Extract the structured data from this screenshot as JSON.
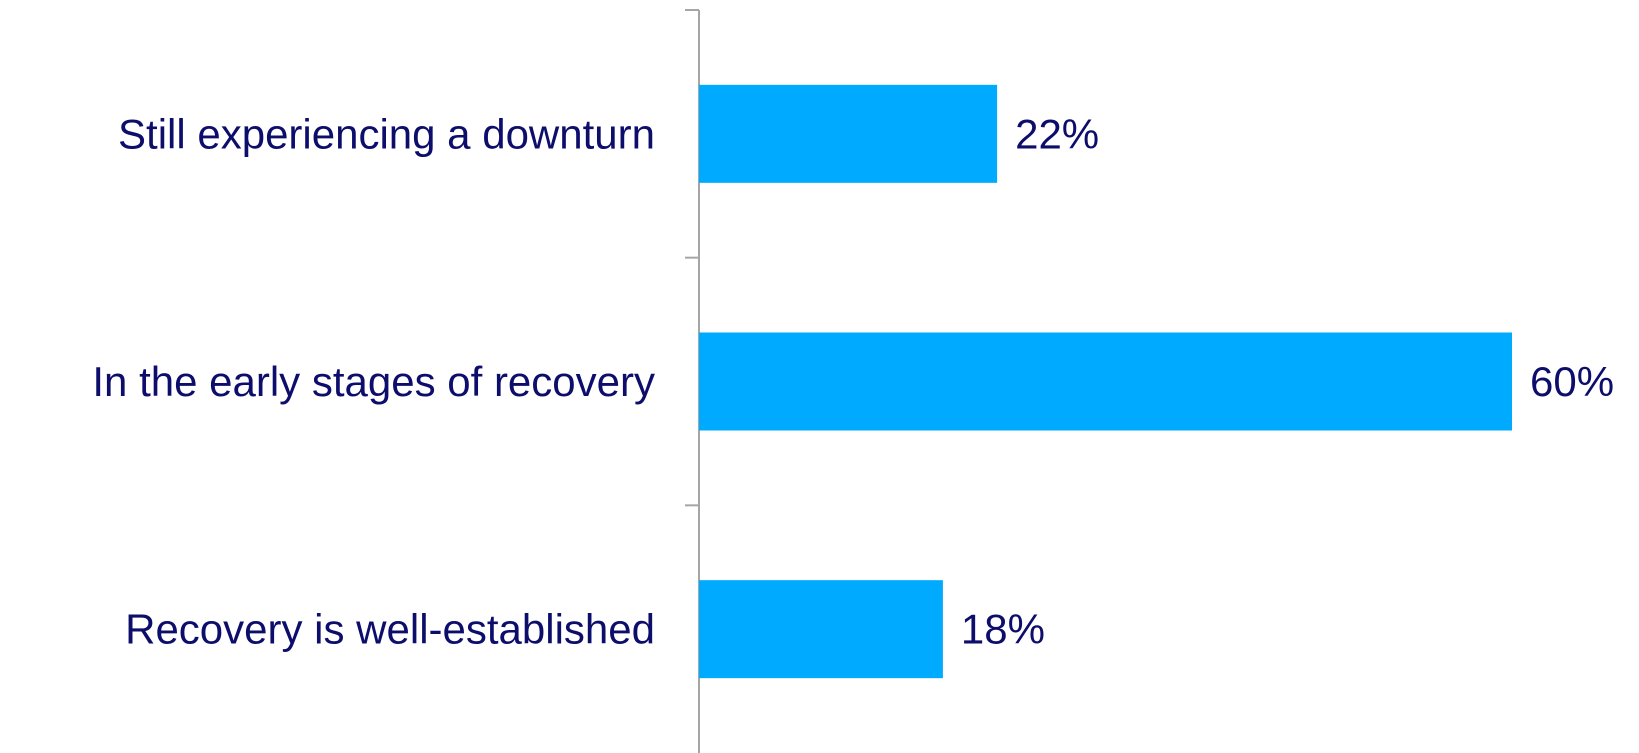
{
  "chart_data": {
    "type": "bar",
    "orientation": "horizontal",
    "categories": [
      "Still experiencing a downturn",
      "In the early stages of recovery",
      "Recovery is well-established"
    ],
    "values": [
      22,
      60,
      18
    ],
    "value_labels": [
      "22%",
      "60%",
      "18%"
    ],
    "unit": "%",
    "xlim": [
      0,
      60
    ],
    "grid": false,
    "legend": "none",
    "bar_color": "#00AAFF",
    "text_color": "#0D0D6B",
    "axis_color": "#A6A6A6"
  }
}
